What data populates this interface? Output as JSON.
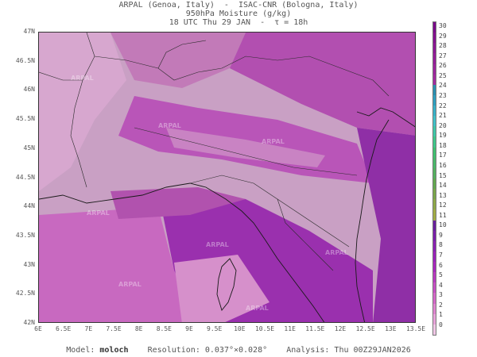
{
  "header": {
    "line1": "ARPAL (Genoa, Italy)  -  ISAC-CNR (Bologna, Italy)",
    "line2": "950hPa Moisture (g/kg)",
    "line3": "18 UTC Thu 29 JAN  -  τ = 18h"
  },
  "lat_labels": [
    "47N",
    "46.5N",
    "46N",
    "45.5N",
    "45N",
    "44.5N",
    "44N",
    "43.5N",
    "43N",
    "42.5N",
    "42N"
  ],
  "lon_labels": [
    "6E",
    "6.5E",
    "7E",
    "7.5E",
    "8E",
    "8.5E",
    "9E",
    "9.5E",
    "10E",
    "10.5E",
    "11E",
    "11.5E",
    "12E",
    "12.5E",
    "13E",
    "13.5E"
  ],
  "colorbar": {
    "labels": [
      "30",
      "29",
      "28",
      "27",
      "26",
      "25",
      "24",
      "23",
      "22",
      "21",
      "20",
      "19",
      "18",
      "17",
      "16",
      "15",
      "14",
      "13",
      "12",
      "11",
      "10",
      "9",
      "8",
      "7",
      "6",
      "5",
      "4",
      "3",
      "2",
      "1",
      "0"
    ],
    "colors": [
      "#7a0a8a",
      "#84108f",
      "#8c1794",
      "#941d98",
      "#9b249c",
      "#a22a9f",
      "#2a8fb0",
      "#2f9fbf",
      "#38b0c8",
      "#40c0c8",
      "#3fc7a8",
      "#3fc78a",
      "#40c070",
      "#4ab86a",
      "#55b060",
      "#63a84f",
      "#7aa64a",
      "#8ea848",
      "#a2ac45",
      "#6a1f9e",
      "#7a1faa",
      "#8a20b2",
      "#9a22ba",
      "#a827bd",
      "#b83abf",
      "#c650c4",
      "#d468c9",
      "#df85d0",
      "#e8a3da",
      "#f0c7e6"
    ]
  },
  "watermark": "ARPAL",
  "footer": {
    "model_label": "Model:",
    "model_name": "moloch",
    "resolution": "Resolution: 0.037°×0.028°",
    "analysis": "Analysis: Thu 00Z29JAN2026"
  }
}
